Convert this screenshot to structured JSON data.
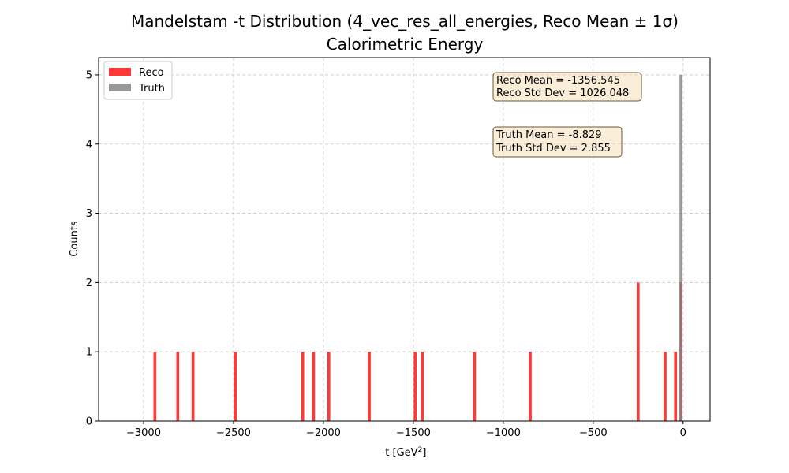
{
  "chart_data": {
    "type": "bar",
    "title_line1": "Mandelstam -t Distribution (4_vec_res_all_energies, Reco Mean ± 1σ)",
    "title_line2": "Calorimetric Energy",
    "xlabel": "-t [GeV",
    "xlabel_sup": "2",
    "xlabel_end": "]",
    "ylabel": "Counts",
    "xlim": [
      -3250,
      150
    ],
    "ylim": [
      0,
      5.25
    ],
    "xticks": [
      -3000,
      -2500,
      -2000,
      -1500,
      -1000,
      -500,
      0
    ],
    "xtick_labels": [
      "−3000",
      "−2500",
      "−2000",
      "−1500",
      "−1000",
      "−500",
      "0"
    ],
    "yticks": [
      0,
      1,
      2,
      3,
      4,
      5
    ],
    "ytick_labels": [
      "0",
      "1",
      "2",
      "3",
      "4",
      "5"
    ],
    "bin_width": 16,
    "grid": true,
    "legend_position": "top-left",
    "series": [
      {
        "name": "Reco",
        "color": "#ff0000",
        "opacity": 0.78,
        "bars": [
          {
            "x": -2937,
            "count": 1
          },
          {
            "x": -2810,
            "count": 1
          },
          {
            "x": -2725,
            "count": 1
          },
          {
            "x": -2490,
            "count": 1
          },
          {
            "x": -2115,
            "count": 1
          },
          {
            "x": -2055,
            "count": 1
          },
          {
            "x": -1970,
            "count": 1
          },
          {
            "x": -1745,
            "count": 1
          },
          {
            "x": -1490,
            "count": 1
          },
          {
            "x": -1450,
            "count": 1
          },
          {
            "x": -1160,
            "count": 1
          },
          {
            "x": -850,
            "count": 1
          },
          {
            "x": -250,
            "count": 2
          },
          {
            "x": -100,
            "count": 1
          },
          {
            "x": -42,
            "count": 1
          },
          {
            "x": -12,
            "count": 2
          }
        ]
      },
      {
        "name": "Truth",
        "color": "#808080",
        "opacity": 0.8,
        "bars": [
          {
            "x": -12,
            "count": 5
          }
        ]
      }
    ],
    "stats": [
      {
        "lines": [
          "Reco Mean = -1356.545",
          "Reco Std Dev = 1026.048"
        ]
      },
      {
        "lines": [
          "Truth Mean = -8.829",
          "Truth Std Dev = 2.855"
        ]
      }
    ],
    "stat_box_colors": {
      "fill": "#f5deb3",
      "stroke": "#6b5a3a"
    }
  }
}
